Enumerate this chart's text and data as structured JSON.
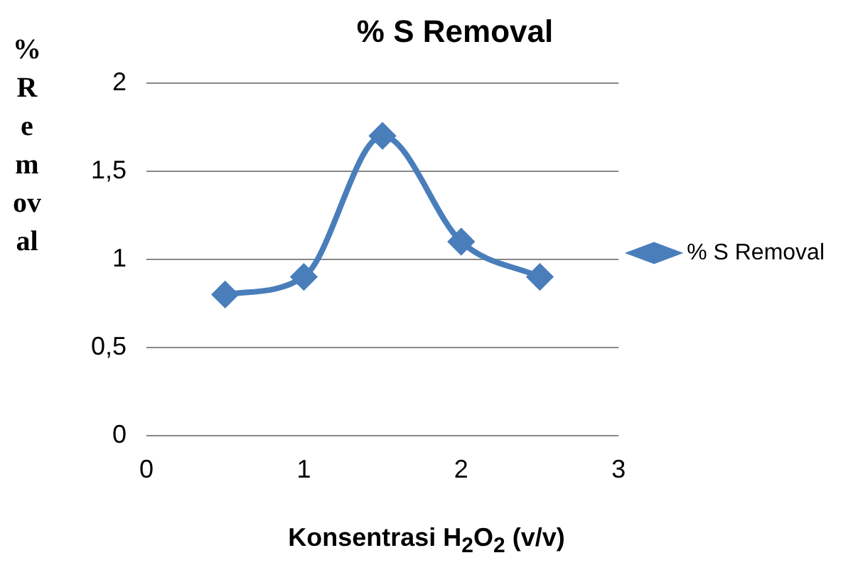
{
  "chart_data": {
    "type": "line",
    "title": "% S Removal",
    "xlabel": "Konsentrasi H$_{2}$O$_{2}$ (v/v)",
    "ylabel": "% Removal",
    "x": [
      0.5,
      1,
      1.5,
      2,
      2.5
    ],
    "series": [
      {
        "name": "% S Removal",
        "color": "#4a7ebb",
        "values": [
          0.8,
          0.9,
          1.7,
          1.1,
          0.9
        ]
      }
    ],
    "xlim": [
      0,
      3
    ],
    "xticks": [
      0,
      1,
      2,
      3
    ],
    "ylim": [
      0,
      2
    ],
    "yticks": [
      0,
      {
        "value": 0.5,
        "label": "0,5"
      },
      1,
      {
        "value": 1.5,
        "label": "1,5"
      },
      2
    ],
    "grid": "y",
    "legend": "right",
    "marker": "diamond",
    "line_style": "solid"
  }
}
